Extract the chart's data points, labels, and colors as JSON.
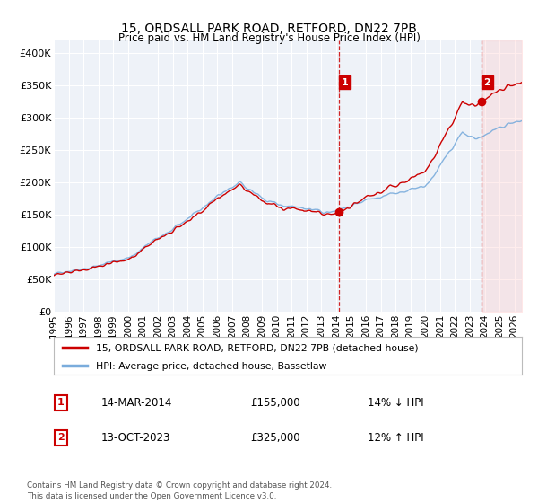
{
  "title": "15, ORDSALL PARK ROAD, RETFORD, DN22 7PB",
  "subtitle": "Price paid vs. HM Land Registry's House Price Index (HPI)",
  "ylabel_ticks": [
    "£0",
    "£50K",
    "£100K",
    "£150K",
    "£200K",
    "£250K",
    "£300K",
    "£350K",
    "£400K"
  ],
  "ytick_values": [
    0,
    50000,
    100000,
    150000,
    200000,
    250000,
    300000,
    350000,
    400000
  ],
  "ylim": [
    0,
    420000
  ],
  "xlim_start": 1995.0,
  "xlim_end": 2026.5,
  "hpi_color": "#7aacdc",
  "price_color": "#cc0000",
  "marker1_date": 2014.2,
  "marker1_price": 155000,
  "marker2_date": 2023.78,
  "marker2_price": 325000,
  "legend_line1": "15, ORDSALL PARK ROAD, RETFORD, DN22 7PB (detached house)",
  "legend_line2": "HPI: Average price, detached house, Bassetlaw",
  "annotation1_label": "1",
  "annotation1_date": "14-MAR-2014",
  "annotation1_price": "£155,000",
  "annotation1_hpi": "14% ↓ HPI",
  "annotation2_label": "2",
  "annotation2_date": "13-OCT-2023",
  "annotation2_price": "£325,000",
  "annotation2_hpi": "12% ↑ HPI",
  "footnote": "Contains HM Land Registry data © Crown copyright and database right 2024.\nThis data is licensed under the Open Government Licence v3.0.",
  "background_color": "#ffffff",
  "plot_bg_color": "#eef2f8",
  "grid_color": "#ffffff"
}
